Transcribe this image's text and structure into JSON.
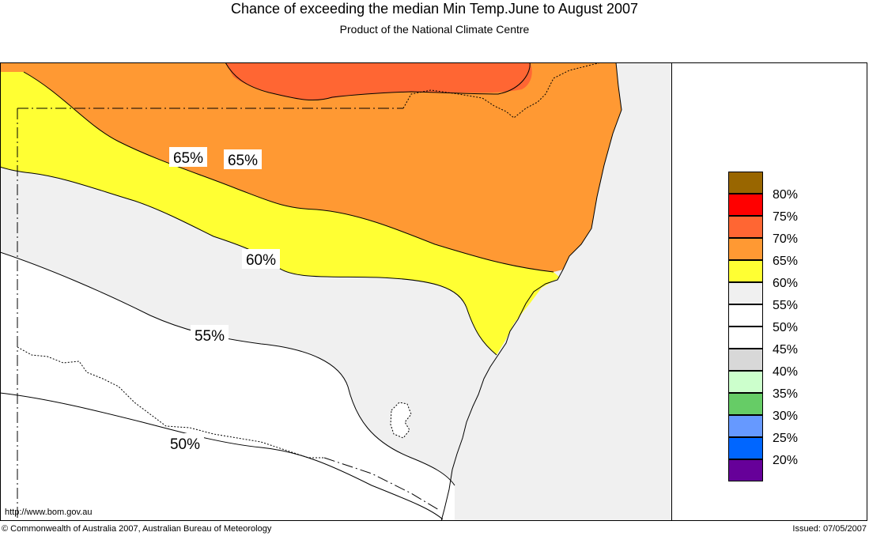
{
  "header": {
    "title": "Chance of exceeding the median Min Temp.June to August 2007",
    "subtitle": "Product of the National Climate Centre"
  },
  "map": {
    "contour_labels": [
      {
        "id": "label-65-a",
        "text": "65%"
      },
      {
        "id": "label-65-b",
        "text": "65%"
      },
      {
        "id": "label-60",
        "text": "60%"
      },
      {
        "id": "label-55",
        "text": "55%"
      },
      {
        "id": "label-50",
        "text": "50%"
      }
    ],
    "zone_colors": {
      "p70": "#ff6633",
      "p65": "#ff9933",
      "p60": "#ffff33",
      "p55": "#f0f0f0",
      "p50": "#ffffff"
    }
  },
  "legend": {
    "items": [
      {
        "label": "",
        "color": "#996600"
      },
      {
        "label": "80%",
        "color": "#ff0000"
      },
      {
        "label": "75%",
        "color": "#ff6633"
      },
      {
        "label": "70%",
        "color": "#ff9933"
      },
      {
        "label": "65%",
        "color": "#ffff33"
      },
      {
        "label": "60%",
        "color": "#f0f0f0"
      },
      {
        "label": "55%",
        "color": "#ffffff"
      },
      {
        "label": "50%",
        "color": "#ffffff"
      },
      {
        "label": "45%",
        "color": "#d8d8d8"
      },
      {
        "label": "40%",
        "color": "#ccffcc"
      },
      {
        "label": "35%",
        "color": "#66cc66"
      },
      {
        "label": "30%",
        "color": "#6699ff"
      },
      {
        "label": "25%",
        "color": "#0066ff"
      },
      {
        "label": "20%",
        "color": "#660099"
      }
    ]
  },
  "footer": {
    "url": "http://www.bom.gov.au",
    "copyright": "© Commonwealth of Australia 2007, Australian Bureau of Meteorology",
    "issued": "Issued: 07/05/2007"
  }
}
